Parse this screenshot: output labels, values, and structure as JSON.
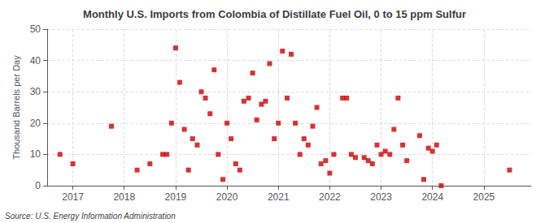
{
  "chart_data": {
    "type": "scatter",
    "title": "Monthly U.S. Imports from Colombia of Distillate Fuel Oil, 0 to 15 ppm Sulfur",
    "ylabel": "Thousand Barrels per Day",
    "annotation": "Source: U.S. Energy Information Administration",
    "color": "#cc0000",
    "marker": "square",
    "grid": true,
    "xlim": [
      2016.5,
      2025.92
    ],
    "xticks": [
      2017,
      2018,
      2019,
      2020,
      2021,
      2022,
      2023,
      2024,
      2025
    ],
    "ylim": [
      0,
      50
    ],
    "yticks": [
      0,
      10,
      20,
      30,
      40,
      50
    ],
    "x": [
      2016.75,
      2017.0,
      2017.75,
      2018.25,
      2018.5,
      2018.75,
      2018.83,
      2018.92,
      2019.0,
      2019.08,
      2019.17,
      2019.25,
      2019.33,
      2019.42,
      2019.5,
      2019.58,
      2019.67,
      2019.75,
      2019.83,
      2019.92,
      2020.0,
      2020.08,
      2020.17,
      2020.25,
      2020.33,
      2020.42,
      2020.5,
      2020.58,
      2020.67,
      2020.75,
      2020.83,
      2020.92,
      2021.0,
      2021.08,
      2021.17,
      2021.25,
      2021.33,
      2021.42,
      2021.5,
      2021.58,
      2021.67,
      2021.75,
      2021.83,
      2021.92,
      2022.0,
      2022.08,
      2022.25,
      2022.33,
      2022.42,
      2022.5,
      2022.67,
      2022.75,
      2022.83,
      2022.92,
      2023.0,
      2023.08,
      2023.17,
      2023.25,
      2023.33,
      2023.42,
      2023.5,
      2023.75,
      2023.83,
      2023.92,
      2024.0,
      2024.08,
      2024.17,
      2025.5
    ],
    "values": [
      10,
      7,
      19,
      5,
      7,
      10,
      10,
      20,
      44,
      33,
      18,
      5,
      15,
      13,
      30,
      28,
      23,
      37,
      10,
      2,
      20,
      15,
      7,
      5,
      27,
      28,
      36,
      21,
      26,
      27,
      39,
      15,
      20,
      43,
      28,
      42,
      20,
      10,
      15,
      13,
      19,
      25,
      7,
      8,
      4,
      10,
      28,
      28,
      10,
      9,
      9,
      8,
      7,
      13,
      10,
      11,
      10,
      18,
      28,
      13,
      8,
      16,
      2,
      12,
      11,
      13,
      0,
      5
    ]
  }
}
